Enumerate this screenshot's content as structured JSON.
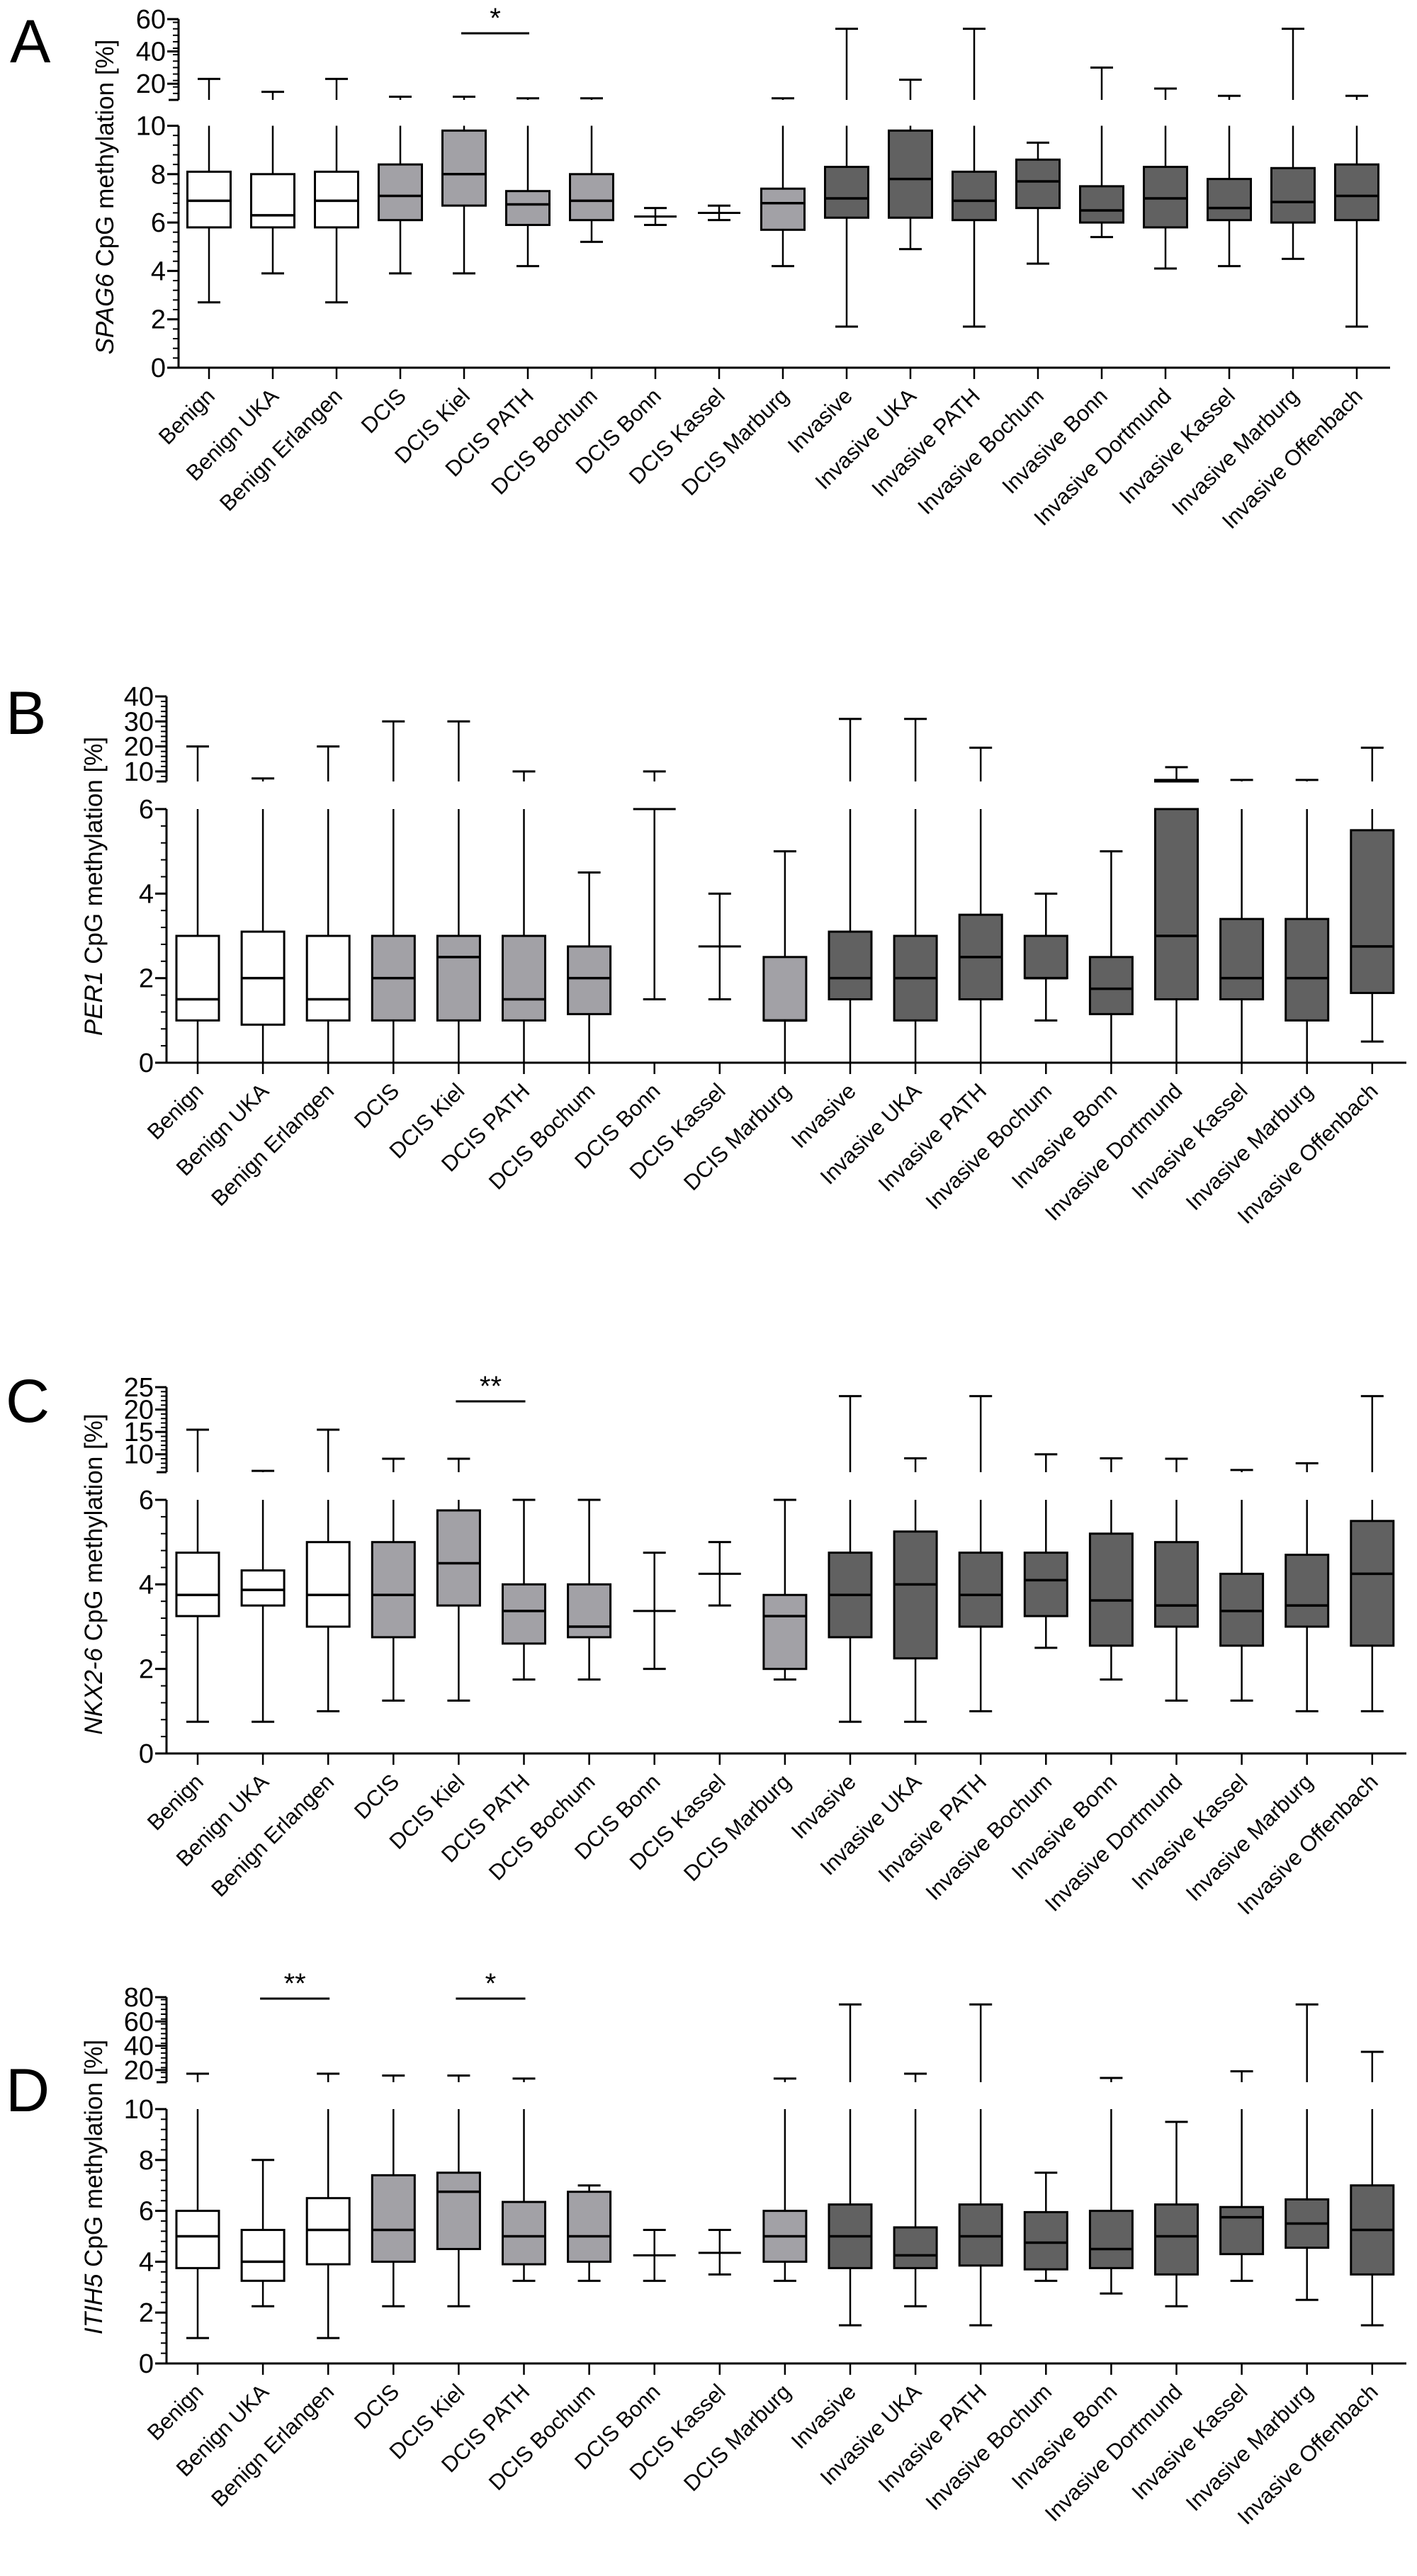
{
  "figure": {
    "color_groups": {
      "benign": "#ffffff",
      "dcis": "#a2a1a6",
      "invasive": "#616161"
    },
    "category_groups": [
      "benign",
      "benign",
      "benign",
      "dcis",
      "dcis",
      "dcis",
      "dcis",
      "dcis",
      "dcis",
      "dcis",
      "invasive",
      "invasive",
      "invasive",
      "invasive",
      "invasive",
      "invasive",
      "invasive",
      "invasive",
      "invasive"
    ]
  },
  "chart_data": [
    {
      "panel": "A",
      "type": "box",
      "ylabel_gene": "SPAG6",
      "ylabel_rest": " CpG methylation [%]",
      "y_axis_broken": true,
      "y_lower": {
        "range": [
          0,
          10
        ],
        "ticks": [
          "0",
          "2",
          "4",
          "6",
          "8",
          "10"
        ]
      },
      "y_upper": {
        "range": [
          10,
          60
        ],
        "ticks": [
          "20",
          "40",
          "60"
        ]
      },
      "categories": [
        "Benign",
        "Benign UKA",
        "Benign Erlangen",
        "DCIS",
        "DCIS Kiel",
        "DCIS PATH",
        "DCIS Bochum",
        "DCIS Bonn",
        "DCIS Kassel",
        "DCIS Marburg",
        "Invasive",
        "Invasive UKA",
        "Invasive PATH",
        "Invasive Bochum",
        "Invasive Bonn",
        "Invasive Dortmund",
        "Invasive Kassel",
        "Invasive Marburg",
        "Invasive Offenbach"
      ],
      "boxes": [
        {
          "min": 2.7,
          "q1": 5.8,
          "median": 6.9,
          "q3": 8.1,
          "max": 23
        },
        {
          "min": 3.9,
          "q1": 5.8,
          "median": 6.3,
          "q3": 8.0,
          "max": 15
        },
        {
          "min": 2.7,
          "q1": 5.8,
          "median": 6.9,
          "q3": 8.1,
          "max": 23
        },
        {
          "min": 3.9,
          "q1": 6.1,
          "median": 7.1,
          "q3": 8.4,
          "max": 12
        },
        {
          "min": 3.9,
          "q1": 6.7,
          "median": 8.0,
          "q3": 9.8,
          "max": 12
        },
        {
          "min": 4.2,
          "q1": 5.9,
          "median": 6.75,
          "q3": 7.3,
          "max": 11
        },
        {
          "min": 5.2,
          "q1": 6.1,
          "median": 6.9,
          "q3": 8.0,
          "max": 11
        },
        {
          "min": 5.9,
          "q1": null,
          "median": 6.25,
          "q3": null,
          "max": 6.6
        },
        {
          "min": 6.1,
          "q1": null,
          "median": 6.4,
          "q3": null,
          "max": 6.7
        },
        {
          "min": 4.2,
          "q1": 5.7,
          "median": 6.8,
          "q3": 7.4,
          "max": 11
        },
        {
          "min": 1.7,
          "q1": 6.2,
          "median": 7.0,
          "q3": 8.3,
          "max": 54
        },
        {
          "min": 4.9,
          "q1": 6.2,
          "median": 7.8,
          "q3": 9.8,
          "max": 22.5
        },
        {
          "min": 1.7,
          "q1": 6.1,
          "median": 6.9,
          "q3": 8.1,
          "max": 54
        },
        {
          "min": 4.3,
          "q1": 6.6,
          "median": 7.7,
          "q3": 8.6,
          "max": 9.3
        },
        {
          "min": 5.4,
          "q1": 6.0,
          "median": 6.5,
          "q3": 7.5,
          "max": 30
        },
        {
          "min": 4.1,
          "q1": 5.8,
          "median": 7.0,
          "q3": 8.3,
          "max": 17
        },
        {
          "min": 4.2,
          "q1": 6.1,
          "median": 6.6,
          "q3": 7.8,
          "max": 12.5
        },
        {
          "min": 4.5,
          "q1": 6.0,
          "median": 6.85,
          "q3": 8.25,
          "max": 54
        },
        {
          "min": 1.7,
          "q1": 6.1,
          "median": 7.1,
          "q3": 8.4,
          "max": 12.5
        }
      ],
      "significance": [
        {
          "from": 4,
          "to": 5,
          "label": "*"
        }
      ]
    },
    {
      "panel": "B",
      "type": "box",
      "ylabel_gene": "PER1",
      "ylabel_rest": " CpG methylation [%]",
      "y_axis_broken": true,
      "y_lower": {
        "range": [
          0,
          6
        ],
        "ticks": [
          "0",
          "2",
          "4",
          "6"
        ]
      },
      "y_upper": {
        "range": [
          6,
          40
        ],
        "ticks": [
          "10",
          "20",
          "30",
          "40"
        ]
      },
      "categories": [
        "Benign",
        "Benign UKA",
        "Benign Erlangen",
        "DCIS",
        "DCIS Kiel",
        "DCIS PATH",
        "DCIS Bochum",
        "DCIS Bonn",
        "DCIS Kassel",
        "DCIS Marburg",
        "Invasive",
        "Invasive UKA",
        "Invasive PATH",
        "Invasive Bochum",
        "Invasive Bonn",
        "Invasive Dortmund",
        "Invasive Kassel",
        "Invasive Marburg",
        "Invasive Offenbach"
      ],
      "boxes": [
        {
          "min": 0,
          "q1": 1.0,
          "median": 1.5,
          "q3": 3.0,
          "max": 20
        },
        {
          "min": 0,
          "q1": 0.9,
          "median": 2.0,
          "q3": 3.1,
          "max": 7.2
        },
        {
          "min": 0,
          "q1": 1.0,
          "median": 1.5,
          "q3": 3.0,
          "max": 20
        },
        {
          "min": 0,
          "q1": 1.0,
          "median": 2.0,
          "q3": 3.0,
          "max": 30
        },
        {
          "min": 0,
          "q1": 1.0,
          "median": 2.5,
          "q3": 3.0,
          "max": 30
        },
        {
          "min": 0,
          "q1": 1.0,
          "median": 1.5,
          "q3": 3.0,
          "max": 10
        },
        {
          "min": 0,
          "q1": 1.15,
          "median": 2.0,
          "q3": 2.75,
          "max": 4.5
        },
        {
          "min": 1.5,
          "q1": null,
          "median": 6.0,
          "q3": null,
          "max": 10
        },
        {
          "min": 1.5,
          "q1": null,
          "median": 2.75,
          "q3": null,
          "max": 4.0
        },
        {
          "min": 0,
          "q1": 1.0,
          "median": 1.0,
          "q3": 2.5,
          "max": 5.0
        },
        {
          "min": 0,
          "q1": 1.5,
          "median": 2.0,
          "q3": 3.1,
          "max": 31
        },
        {
          "min": 0,
          "q1": 1.0,
          "median": 2.0,
          "q3": 3.0,
          "max": 31
        },
        {
          "min": 0,
          "q1": 1.5,
          "median": 2.5,
          "q3": 3.5,
          "max": 19.5
        },
        {
          "min": 1.0,
          "q1": 2.0,
          "median": 2.0,
          "q3": 3.0,
          "max": 4.0
        },
        {
          "min": 0,
          "q1": 1.15,
          "median": 1.75,
          "q3": 2.5,
          "max": 5.0
        },
        {
          "min": 0,
          "q1": 1.5,
          "median": 3.0,
          "q3": 6.6,
          "max": 11.7
        },
        {
          "min": 0,
          "q1": 1.5,
          "median": 2.0,
          "q3": 3.4,
          "max": 6.6
        },
        {
          "min": 0,
          "q1": 1.0,
          "median": 2.0,
          "q3": 3.4,
          "max": 6.6
        },
        {
          "min": 0.5,
          "q1": 1.65,
          "median": 2.75,
          "q3": 5.5,
          "max": 19.5
        }
      ],
      "significance": []
    },
    {
      "panel": "C",
      "type": "box",
      "ylabel_gene": "NKX2-6",
      "ylabel_rest": " CpG methylation [%]",
      "y_axis_broken": true,
      "y_lower": {
        "range": [
          0,
          6
        ],
        "ticks": [
          "0",
          "2",
          "4",
          "6"
        ]
      },
      "y_upper": {
        "range": [
          6,
          25
        ],
        "ticks": [
          "10",
          "15",
          "20",
          "25"
        ]
      },
      "categories": [
        "Benign",
        "Benign UKA",
        "Benign Erlangen",
        "DCIS",
        "DCIS Kiel",
        "DCIS PATH",
        "DCIS Bochum",
        "DCIS Bonn",
        "DCIS Kassel",
        "DCIS Marburg",
        "Invasive",
        "Invasive UKA",
        "Invasive PATH",
        "Invasive Bochum",
        "Invasive Bonn",
        "Invasive Dortmund",
        "Invasive Kassel",
        "Invasive Marburg",
        "Invasive Offenbach"
      ],
      "boxes": [
        {
          "min": 0.75,
          "q1": 3.25,
          "median": 3.75,
          "q3": 4.75,
          "max": 15.5
        },
        {
          "min": 0.75,
          "q1": 3.5,
          "median": 3.87,
          "q3": 4.33,
          "max": 6.3
        },
        {
          "min": 1.0,
          "q1": 3.0,
          "median": 3.75,
          "q3": 5.0,
          "max": 15.5
        },
        {
          "min": 1.25,
          "q1": 2.75,
          "median": 3.75,
          "q3": 5.0,
          "max": 9
        },
        {
          "min": 1.25,
          "q1": 3.5,
          "median": 4.5,
          "q3": 5.75,
          "max": 9
        },
        {
          "min": 1.75,
          "q1": 2.6,
          "median": 3.37,
          "q3": 4.0,
          "max": 6.0
        },
        {
          "min": 1.75,
          "q1": 2.75,
          "median": 3.0,
          "q3": 4.0,
          "max": 6.0
        },
        {
          "min": 2.0,
          "q1": null,
          "median": 3.37,
          "q3": null,
          "max": 4.75
        },
        {
          "min": 3.5,
          "q1": null,
          "median": 4.25,
          "q3": null,
          "max": 5.0
        },
        {
          "min": 1.75,
          "q1": 2.0,
          "median": 3.25,
          "q3": 3.75,
          "max": 6.0
        },
        {
          "min": 0.75,
          "q1": 2.75,
          "median": 3.75,
          "q3": 4.75,
          "max": 23
        },
        {
          "min": 0.75,
          "q1": 2.25,
          "median": 4.0,
          "q3": 5.25,
          "max": 9.1
        },
        {
          "min": 1.0,
          "q1": 3.0,
          "median": 3.75,
          "q3": 4.75,
          "max": 23
        },
        {
          "min": 2.5,
          "q1": 3.25,
          "median": 4.1,
          "q3": 4.75,
          "max": 10
        },
        {
          "min": 1.75,
          "q1": 2.55,
          "median": 3.62,
          "q3": 5.2,
          "max": 9.1
        },
        {
          "min": 1.25,
          "q1": 3.0,
          "median": 3.5,
          "q3": 5.0,
          "max": 9
        },
        {
          "min": 1.25,
          "q1": 2.55,
          "median": 3.37,
          "q3": 4.25,
          "max": 6.5
        },
        {
          "min": 1.0,
          "q1": 3.0,
          "median": 3.5,
          "q3": 4.7,
          "max": 8
        },
        {
          "min": 1.0,
          "q1": 2.55,
          "median": 4.25,
          "q3": 5.5,
          "max": 23
        }
      ],
      "significance": [
        {
          "from": 4,
          "to": 5,
          "label": "**"
        }
      ]
    },
    {
      "panel": "D",
      "type": "box",
      "ylabel_gene": "ITIH5",
      "ylabel_rest": " CpG methylation [%]",
      "y_axis_broken": true,
      "y_lower": {
        "range": [
          0,
          10
        ],
        "ticks": [
          "0",
          "2",
          "4",
          "6",
          "8",
          "10"
        ]
      },
      "y_upper": {
        "range": [
          10,
          80
        ],
        "ticks": [
          "20",
          "40",
          "60",
          "80"
        ]
      },
      "categories": [
        "Benign",
        "Benign UKA",
        "Benign Erlangen",
        "DCIS",
        "DCIS Kiel",
        "DCIS PATH",
        "DCIS Bochum",
        "DCIS Bonn",
        "DCIS Kassel",
        "DCIS Marburg",
        "Invasive",
        "Invasive UKA",
        "Invasive PATH",
        "Invasive Bochum",
        "Invasive Bonn",
        "Invasive Dortmund",
        "Invasive Kassel",
        "Invasive Marburg",
        "Invasive Offenbach"
      ],
      "boxes": [
        {
          "min": 1.0,
          "q1": 3.75,
          "median": 5.0,
          "q3": 6.0,
          "max": 17
        },
        {
          "min": 2.25,
          "q1": 3.25,
          "median": 4.0,
          "q3": 5.25,
          "max": 8.0
        },
        {
          "min": 1.0,
          "q1": 3.9,
          "median": 5.25,
          "q3": 6.5,
          "max": 17
        },
        {
          "min": 2.25,
          "q1": 4.0,
          "median": 5.25,
          "q3": 7.4,
          "max": 15.5
        },
        {
          "min": 2.25,
          "q1": 4.5,
          "median": 6.75,
          "q3": 7.5,
          "max": 15.5
        },
        {
          "min": 3.25,
          "q1": 3.9,
          "median": 5.0,
          "q3": 6.35,
          "max": 13
        },
        {
          "min": 3.25,
          "q1": 4.0,
          "median": 5.0,
          "q3": 6.75,
          "max": 7.0
        },
        {
          "min": 3.25,
          "q1": null,
          "median": 4.25,
          "q3": null,
          "max": 5.25
        },
        {
          "min": 3.5,
          "q1": null,
          "median": 4.35,
          "q3": null,
          "max": 5.25
        },
        {
          "min": 3.25,
          "q1": 4.0,
          "median": 5.0,
          "q3": 6.0,
          "max": 13
        },
        {
          "min": 1.5,
          "q1": 3.75,
          "median": 5.0,
          "q3": 6.25,
          "max": 74
        },
        {
          "min": 2.25,
          "q1": 3.75,
          "median": 4.25,
          "q3": 5.35,
          "max": 17
        },
        {
          "min": 1.5,
          "q1": 3.85,
          "median": 5.0,
          "q3": 6.25,
          "max": 74
        },
        {
          "min": 3.25,
          "q1": 3.7,
          "median": 4.75,
          "q3": 5.95,
          "max": 7.5
        },
        {
          "min": 2.75,
          "q1": 3.75,
          "median": 4.5,
          "q3": 6.0,
          "max": 13.5
        },
        {
          "min": 2.25,
          "q1": 3.5,
          "median": 5.0,
          "q3": 6.25,
          "max": 9.5
        },
        {
          "min": 3.25,
          "q1": 4.3,
          "median": 5.75,
          "q3": 6.15,
          "max": 19
        },
        {
          "min": 2.5,
          "q1": 4.55,
          "median": 5.5,
          "q3": 6.45,
          "max": 74
        },
        {
          "min": 1.5,
          "q1": 3.5,
          "median": 5.25,
          "q3": 7.0,
          "max": 35
        }
      ],
      "significance": [
        {
          "from": 1,
          "to": 2,
          "label": "**"
        },
        {
          "from": 4,
          "to": 5,
          "label": "*"
        }
      ]
    }
  ]
}
